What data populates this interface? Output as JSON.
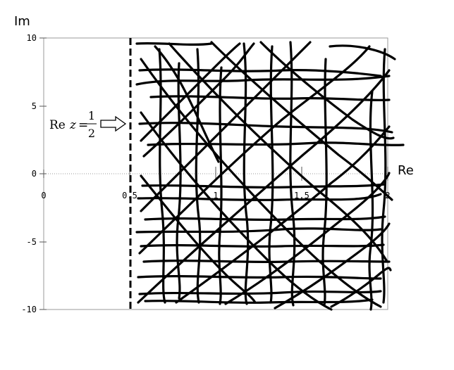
{
  "chart_data": {
    "type": "diagram",
    "xlabel": "Re",
    "ylabel": "Im",
    "xlim": [
      0,
      2
    ],
    "ylim": [
      -10,
      10
    ],
    "x_tick_labels": [
      {
        "value": 0,
        "text": "0"
      },
      {
        "value": 0.5,
        "text": "0.5"
      },
      {
        "value": 1,
        "text": "1"
      },
      {
        "value": 1.5,
        "text": "1.5"
      },
      {
        "value": 2,
        "text": "2"
      }
    ],
    "y_tick_labels": [
      {
        "value": 10,
        "text": "10"
      },
      {
        "value": 5,
        "text": "5"
      },
      {
        "value": 0,
        "text": "0"
      },
      {
        "value": -5,
        "text": "-5"
      },
      {
        "value": -10,
        "text": "-10"
      }
    ],
    "critical_line": {
      "x": 0.5,
      "style": "dashed"
    },
    "annotation": {
      "prefix": "Re",
      "variable": "z",
      "equals": "=",
      "numerator": "1",
      "denominator": "2"
    },
    "hatched_region": {
      "x_from": 0.5,
      "x_to": 2,
      "y_from": -10,
      "y_to": 10,
      "style": "hand-drawn hatching"
    },
    "grid": false
  }
}
